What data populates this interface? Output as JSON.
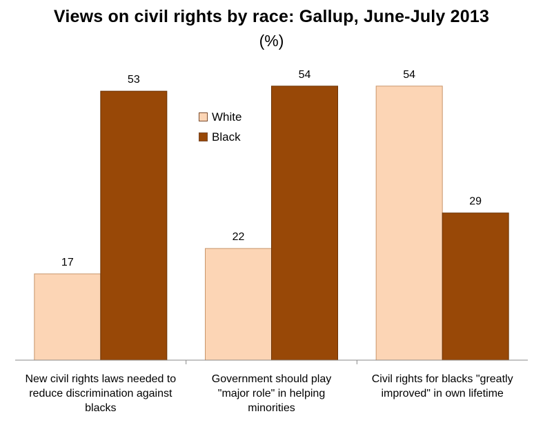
{
  "chart_data": {
    "type": "bar",
    "title": "Views on civil rights by race: Gallup, June-July 2013",
    "subtitle": "(%)",
    "categories": [
      "New civil rights laws needed to reduce discrimination against blacks",
      "Government should play \"major role\" in helping minorities",
      "Civil rights for blacks \"greatly improved\" in own lifetime"
    ],
    "category_lines": [
      [
        "New civil rights laws needed to",
        "reduce discrimination against",
        "blacks"
      ],
      [
        "Government should play",
        "\"major role\" in helping",
        "minorities"
      ],
      [
        "Civil rights for blacks \"greatly",
        "improved\" in own lifetime"
      ]
    ],
    "series": [
      {
        "name": "White",
        "values": [
          17,
          22,
          54
        ],
        "color": "#FCD5B5"
      },
      {
        "name": "Black",
        "values": [
          53,
          54,
          29
        ],
        "color": "#984807"
      }
    ],
    "ylim": [
      0,
      59
    ],
    "grid": false,
    "legend_position": "top-center",
    "data_labels": true
  }
}
